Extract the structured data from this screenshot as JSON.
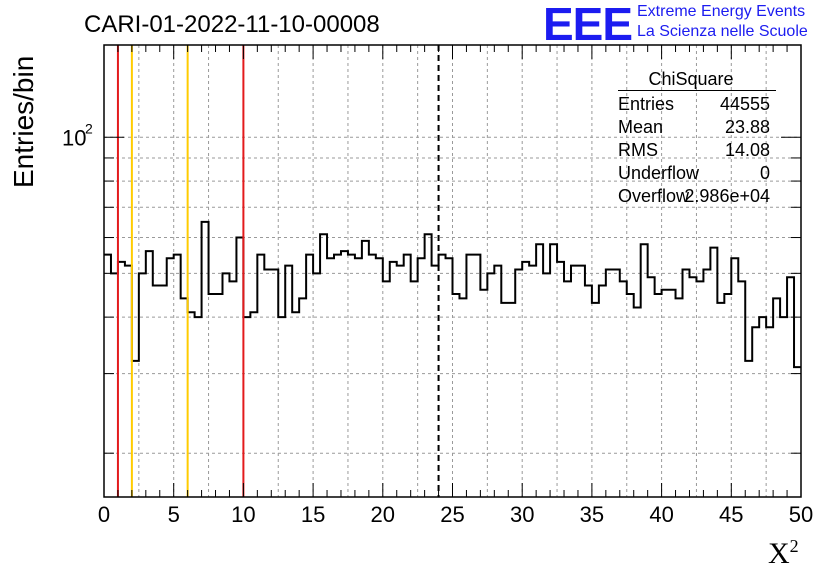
{
  "title": "CARI-01-2022-11-10-00008",
  "logo": {
    "mark": "EEE",
    "line1": "Extreme Energy Events",
    "line2": "La Scienza nelle Scuole",
    "color": "#1c1cf0"
  },
  "axes": {
    "ylabel": "Entries/bin",
    "xlabel_base": "X",
    "xlabel_sup": "2",
    "y_tick_label": "10",
    "y_tick_sup": "2"
  },
  "stats": {
    "title": "ChiSquare",
    "rows": [
      {
        "key": "Entries",
        "value": "44555"
      },
      {
        "key": "Mean",
        "value": "23.88"
      },
      {
        "key": "RMS",
        "value": "14.08"
      },
      {
        "key": "Underflow",
        "value": "0"
      },
      {
        "key": "Overflow",
        "value": "2.986e+04"
      }
    ]
  },
  "chart_data": {
    "type": "bar",
    "histogram": true,
    "title": "CARI-01-2022-11-10-00008",
    "xlabel": "X²",
    "ylabel": "Entries/bin",
    "xlim": [
      0,
      50
    ],
    "ylim": [
      16,
      160
    ],
    "y_scale": "log",
    "grid": true,
    "x_ticks": [
      0,
      5,
      10,
      15,
      20,
      25,
      30,
      35,
      40,
      45,
      50
    ],
    "bin_width": 0.5,
    "values": [
      55,
      50,
      53,
      52,
      32,
      50,
      56,
      47,
      47,
      54,
      55,
      44,
      41,
      40,
      65,
      45,
      45,
      50,
      48,
      60,
      40,
      41,
      55,
      51,
      51,
      40,
      52,
      41,
      44,
      55,
      50,
      61,
      54,
      55,
      56,
      55,
      54,
      59,
      55,
      54,
      48,
      53,
      52,
      55,
      48,
      54,
      61,
      52,
      55,
      54,
      45,
      44,
      55,
      55,
      46,
      50,
      52,
      43,
      43,
      51,
      53,
      52,
      58,
      50,
      58,
      53,
      48,
      52,
      52,
      47,
      43,
      47,
      51,
      51,
      48,
      45,
      42,
      58,
      49,
      45,
      46,
      46,
      44,
      51,
      49,
      48,
      51,
      57,
      43,
      45,
      54,
      48,
      32,
      38,
      40,
      38,
      44,
      40,
      49,
      31
    ],
    "vertical_lines": [
      {
        "x": 1,
        "color": "#e31a1c",
        "style": "solid"
      },
      {
        "x": 2,
        "color": "#ffcc00",
        "style": "solid"
      },
      {
        "x": 6,
        "color": "#ffcc00",
        "style": "solid"
      },
      {
        "x": 10,
        "color": "#e31a1c",
        "style": "solid"
      },
      {
        "x": 24,
        "color": "#000000",
        "style": "dashed"
      }
    ]
  }
}
